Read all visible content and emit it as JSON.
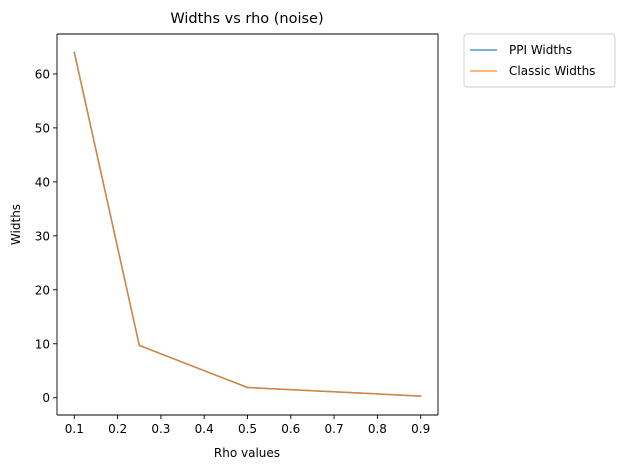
{
  "chart_data": {
    "type": "line",
    "title": "Widths vs rho (noise)",
    "xlabel": "Rho values",
    "ylabel": "Widths",
    "xlim": [
      0.06,
      0.94
    ],
    "ylim": [
      -3.2,
      67.4
    ],
    "xticks": [
      "0.1",
      "0.2",
      "0.3",
      "0.4",
      "0.5",
      "0.6",
      "0.7",
      "0.8",
      "0.9"
    ],
    "yticks": [
      "0",
      "10",
      "20",
      "30",
      "40",
      "50",
      "60"
    ],
    "grid": false,
    "legend_position": "outside-top-right",
    "x": [
      0.1,
      0.25,
      0.5,
      0.9
    ],
    "series": [
      {
        "name": "PPI Widths",
        "color": "#1f77b4",
        "values": [
          64.0,
          9.7,
          1.9,
          0.3
        ]
      },
      {
        "name": "Classic Widths",
        "color": "#ff7f0e",
        "values": [
          64.0,
          9.7,
          1.9,
          0.3
        ]
      }
    ]
  }
}
